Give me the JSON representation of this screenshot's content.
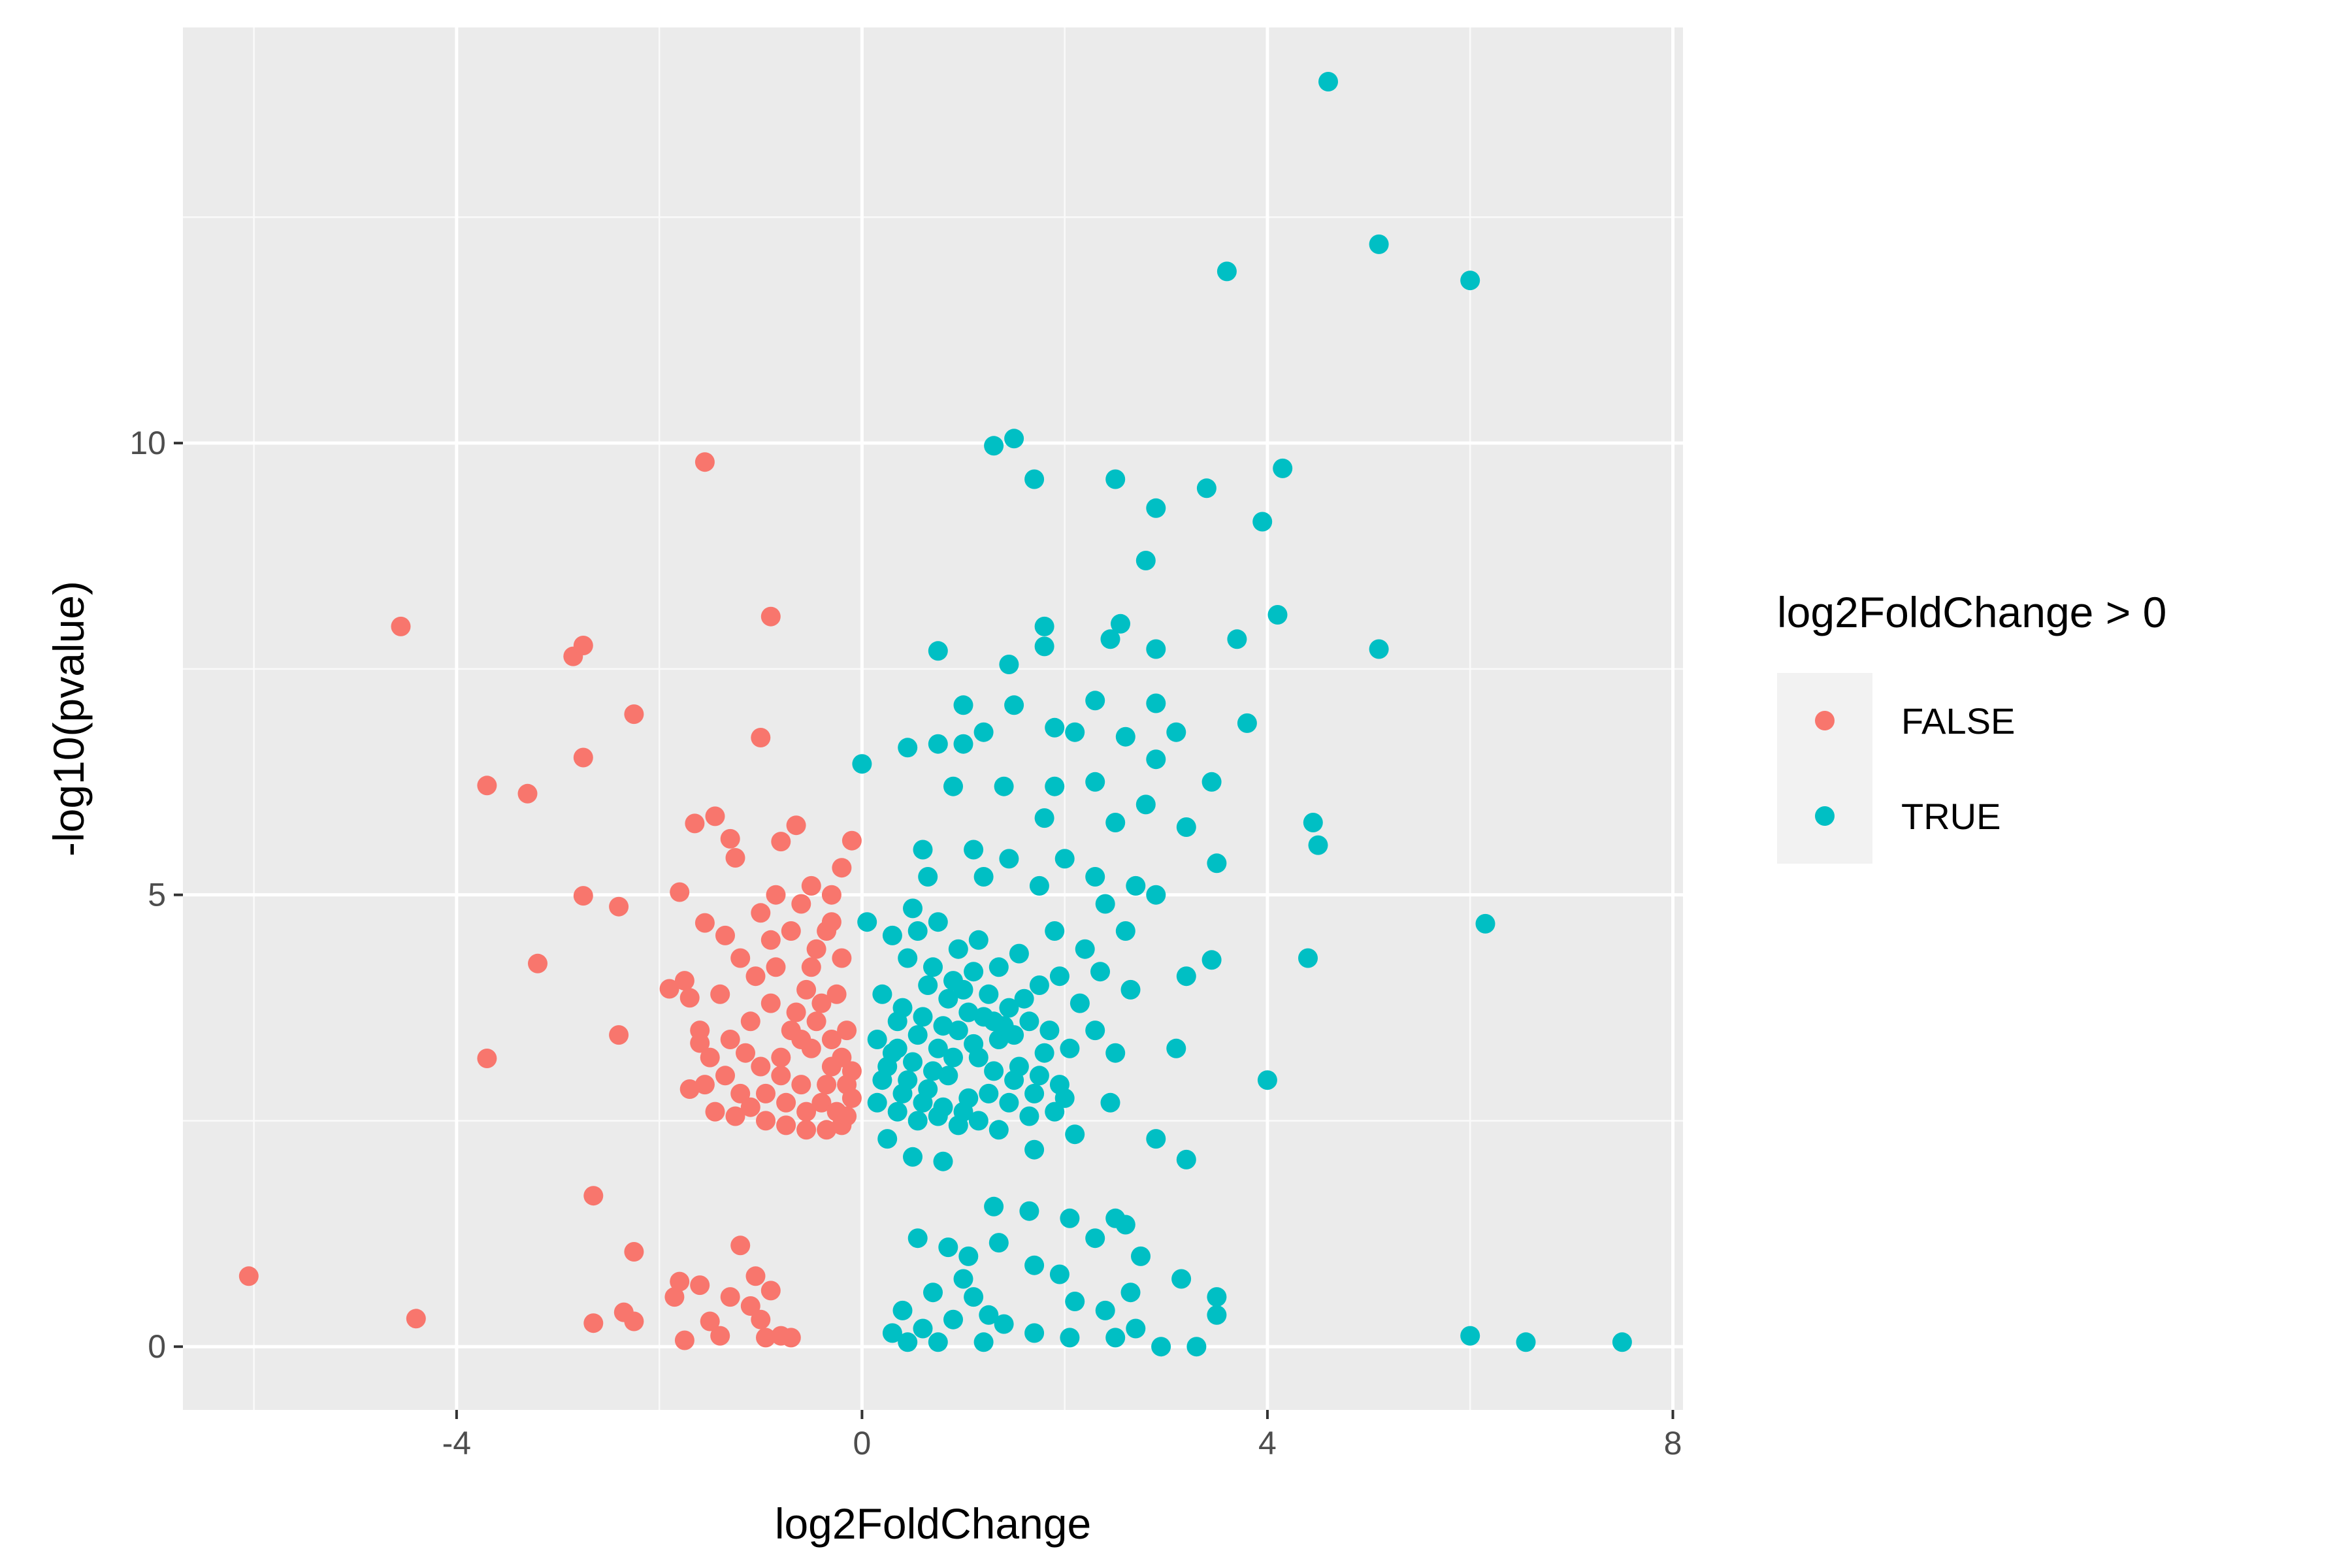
{
  "chart_data": {
    "type": "scatter",
    "xlabel": "log2FoldChange",
    "ylabel": "-log10(pvalue)",
    "xlim": [
      -6.7,
      8.1
    ],
    "ylim": [
      -0.7,
      14.6
    ],
    "x_ticks": [
      -4,
      0,
      4,
      8
    ],
    "y_ticks": [
      0,
      5,
      10
    ],
    "x_tick_labels": [
      "-4",
      "0",
      "4",
      "8"
    ],
    "y_tick_labels": [
      "0",
      "5",
      "10"
    ],
    "grid": true,
    "legend": {
      "title": "log2FoldChange > 0",
      "position": "right",
      "entries": [
        {
          "label": "FALSE",
          "color": "#F8766D"
        },
        {
          "label": "TRUE",
          "color": "#00BFC4"
        }
      ]
    },
    "series": [
      {
        "name": "FALSE",
        "color": "#F8766D",
        "points": [
          [
            -6.05,
            0.78
          ],
          [
            -4.55,
            7.97
          ],
          [
            -4.4,
            0.31
          ],
          [
            -3.7,
            6.21
          ],
          [
            -3.7,
            3.19
          ],
          [
            -3.3,
            6.12
          ],
          [
            -3.2,
            4.24
          ],
          [
            -2.85,
            7.64
          ],
          [
            -2.75,
            7.76
          ],
          [
            -2.75,
            6.52
          ],
          [
            -2.75,
            4.99
          ],
          [
            -2.65,
            1.67
          ],
          [
            -2.65,
            0.26
          ],
          [
            -2.4,
            4.87
          ],
          [
            -2.4,
            3.45
          ],
          [
            -2.35,
            0.38
          ],
          [
            -2.25,
            7.0
          ],
          [
            -2.25,
            1.05
          ],
          [
            -2.25,
            0.28
          ],
          [
            -1.9,
            3.96
          ],
          [
            -1.85,
            0.55
          ],
          [
            -1.8,
            5.03
          ],
          [
            -1.75,
            4.05
          ],
          [
            -1.75,
            0.07
          ],
          [
            -1.7,
            3.86
          ],
          [
            -1.65,
            5.79
          ],
          [
            -1.6,
            3.36
          ],
          [
            -1.55,
            9.79
          ],
          [
            -1.55,
            4.69
          ],
          [
            -1.5,
            0.28
          ],
          [
            -1.45,
            5.87
          ],
          [
            -1.4,
            0.12
          ],
          [
            -1.3,
            5.62
          ],
          [
            -1.25,
            5.41
          ],
          [
            -1.2,
            1.12
          ],
          [
            -1.05,
            0.78
          ],
          [
            -1.0,
            6.74
          ],
          [
            -0.95,
            0.1
          ],
          [
            -0.9,
            8.08
          ],
          [
            -0.8,
            5.59
          ],
          [
            -0.7,
            0.1
          ],
          [
            -0.65,
            5.77
          ],
          [
            -1.8,
            0.72
          ],
          [
            -1.6,
            0.68
          ],
          [
            -1.3,
            0.55
          ],
          [
            -1.1,
            0.45
          ],
          [
            -0.9,
            0.62
          ],
          [
            -0.8,
            0.12
          ],
          [
            -1.0,
            0.3
          ],
          [
            -1.4,
            3.9
          ],
          [
            -1.2,
            4.3
          ],
          [
            -0.6,
            4.9
          ],
          [
            -0.5,
            5.1
          ],
          [
            -0.35,
            4.6
          ],
          [
            -0.2,
            4.3
          ],
          [
            -0.3,
            5.0
          ],
          [
            -0.45,
            4.4
          ],
          [
            -0.55,
            3.95
          ],
          [
            -1.6,
            3.5
          ],
          [
            -1.5,
            3.2
          ],
          [
            -1.35,
            3.0
          ],
          [
            -1.55,
            2.9
          ],
          [
            -1.7,
            2.85
          ],
          [
            -1.45,
            2.6
          ],
          [
            -1.25,
            2.55
          ],
          [
            -0.95,
            2.5
          ],
          [
            -0.75,
            2.45
          ],
          [
            -0.55,
            2.4
          ],
          [
            -0.35,
            2.4
          ],
          [
            -0.2,
            2.45
          ],
          [
            -1.1,
            3.6
          ],
          [
            -0.9,
            3.8
          ],
          [
            -0.7,
            3.5
          ],
          [
            -0.5,
            3.3
          ],
          [
            -0.3,
            3.1
          ],
          [
            -0.15,
            2.9
          ],
          [
            -1.2,
            2.8
          ],
          [
            -1.0,
            3.1
          ],
          [
            -0.8,
            3.2
          ],
          [
            -0.6,
            2.9
          ],
          [
            -0.4,
            2.7
          ],
          [
            -0.25,
            2.6
          ],
          [
            -1.05,
            4.1
          ],
          [
            -0.85,
            4.2
          ],
          [
            -0.65,
            3.7
          ],
          [
            -0.45,
            3.6
          ],
          [
            -0.3,
            3.4
          ],
          [
            -0.15,
            3.5
          ],
          [
            -1.3,
            3.4
          ],
          [
            -1.15,
            3.25
          ],
          [
            -0.95,
            2.8
          ],
          [
            -0.75,
            2.7
          ],
          [
            -0.55,
            2.6
          ],
          [
            -0.35,
            2.9
          ],
          [
            -0.7,
            4.6
          ],
          [
            -0.9,
            4.5
          ],
          [
            -0.5,
            4.2
          ],
          [
            -0.25,
            3.9
          ],
          [
            -0.4,
            3.8
          ],
          [
            -0.6,
            3.4
          ],
          [
            -0.8,
            3.0
          ],
          [
            -1.1,
            2.65
          ],
          [
            -0.2,
            3.2
          ],
          [
            -0.1,
            2.75
          ],
          [
            -0.1,
            3.05
          ],
          [
            -0.15,
            2.55
          ],
          [
            -1.35,
            4.55
          ],
          [
            -1.0,
            4.8
          ],
          [
            -0.85,
            5.0
          ],
          [
            -0.3,
            4.7
          ],
          [
            -0.2,
            5.3
          ],
          [
            -0.1,
            5.6
          ]
        ]
      },
      {
        "name": "TRUE",
        "color": "#00BFC4",
        "points": [
          [
            4.6,
            14.0
          ],
          [
            5.1,
            12.2
          ],
          [
            6.0,
            11.8
          ],
          [
            3.6,
            11.9
          ],
          [
            1.3,
            9.97
          ],
          [
            1.5,
            10.05
          ],
          [
            4.15,
            9.72
          ],
          [
            1.7,
            9.6
          ],
          [
            2.5,
            9.6
          ],
          [
            3.4,
            9.5
          ],
          [
            2.9,
            9.28
          ],
          [
            3.95,
            9.13
          ],
          [
            2.8,
            8.7
          ],
          [
            4.1,
            8.1
          ],
          [
            1.8,
            7.97
          ],
          [
            2.55,
            8.0
          ],
          [
            3.7,
            7.83
          ],
          [
            2.45,
            7.83
          ],
          [
            1.8,
            7.75
          ],
          [
            2.9,
            7.72
          ],
          [
            5.1,
            7.72
          ],
          [
            0.75,
            7.7
          ],
          [
            1.45,
            7.55
          ],
          [
            1.0,
            7.1
          ],
          [
            1.5,
            7.1
          ],
          [
            2.3,
            7.15
          ],
          [
            2.9,
            7.12
          ],
          [
            1.9,
            6.85
          ],
          [
            3.8,
            6.9
          ],
          [
            1.2,
            6.8
          ],
          [
            2.6,
            6.75
          ],
          [
            3.1,
            6.8
          ],
          [
            0.45,
            6.63
          ],
          [
            0.75,
            6.67
          ],
          [
            1.0,
            6.67
          ],
          [
            2.1,
            6.8
          ],
          [
            2.9,
            6.5
          ],
          [
            0.9,
            6.2
          ],
          [
            1.4,
            6.2
          ],
          [
            1.9,
            6.2
          ],
          [
            2.3,
            6.25
          ],
          [
            3.45,
            6.25
          ],
          [
            0.0,
            6.45
          ],
          [
            2.8,
            6.0
          ],
          [
            1.8,
            5.85
          ],
          [
            2.5,
            5.8
          ],
          [
            3.2,
            5.75
          ],
          [
            4.45,
            5.8
          ],
          [
            4.5,
            5.55
          ],
          [
            0.6,
            5.5
          ],
          [
            1.1,
            5.5
          ],
          [
            1.45,
            5.4
          ],
          [
            2.0,
            5.4
          ],
          [
            3.5,
            5.35
          ],
          [
            0.65,
            5.2
          ],
          [
            1.2,
            5.2
          ],
          [
            1.75,
            5.1
          ],
          [
            2.3,
            5.2
          ],
          [
            2.7,
            5.1
          ],
          [
            2.9,
            5.0
          ],
          [
            6.15,
            4.68
          ],
          [
            4.4,
            4.3
          ],
          [
            3.45,
            4.28
          ],
          [
            3.2,
            4.1
          ],
          [
            2.35,
            4.15
          ],
          [
            2.65,
            3.95
          ],
          [
            2.3,
            3.5
          ],
          [
            3.1,
            3.3
          ],
          [
            4.0,
            2.95
          ],
          [
            2.5,
            3.25
          ],
          [
            2.45,
            2.7
          ],
          [
            1.9,
            2.6
          ],
          [
            2.1,
            2.35
          ],
          [
            2.9,
            2.3
          ],
          [
            3.2,
            2.07
          ],
          [
            1.7,
            2.18
          ],
          [
            0.8,
            2.05
          ],
          [
            0.5,
            2.1
          ],
          [
            0.25,
            2.3
          ],
          [
            0.05,
            4.7
          ],
          [
            1.3,
            1.55
          ],
          [
            1.65,
            1.5
          ],
          [
            2.05,
            1.42
          ],
          [
            2.5,
            1.42
          ],
          [
            2.6,
            1.35
          ],
          [
            0.55,
            1.2
          ],
          [
            0.85,
            1.1
          ],
          [
            1.05,
            1.0
          ],
          [
            1.35,
            1.15
          ],
          [
            1.7,
            0.9
          ],
          [
            1.95,
            0.8
          ],
          [
            2.3,
            1.2
          ],
          [
            2.75,
            1.0
          ],
          [
            3.15,
            0.75
          ],
          [
            2.1,
            0.5
          ],
          [
            2.4,
            0.4
          ],
          [
            2.65,
            0.6
          ],
          [
            3.5,
            0.55
          ],
          [
            3.5,
            0.35
          ],
          [
            0.3,
            0.15
          ],
          [
            0.6,
            0.2
          ],
          [
            0.9,
            0.3
          ],
          [
            1.1,
            0.55
          ],
          [
            1.4,
            0.25
          ],
          [
            1.7,
            0.15
          ],
          [
            2.05,
            0.1
          ],
          [
            2.5,
            0.1
          ],
          [
            2.7,
            0.2
          ],
          [
            2.95,
            0.0
          ],
          [
            3.3,
            0.0
          ],
          [
            6.0,
            0.12
          ],
          [
            6.55,
            0.05
          ],
          [
            7.5,
            0.05
          ],
          [
            0.45,
            0.05
          ],
          [
            0.75,
            0.05
          ],
          [
            1.2,
            0.05
          ],
          [
            0.4,
            0.4
          ],
          [
            0.7,
            0.6
          ],
          [
            1.0,
            0.75
          ],
          [
            1.25,
            0.35
          ],
          [
            0.55,
            4.6
          ],
          [
            0.75,
            4.7
          ],
          [
            0.95,
            4.4
          ],
          [
            1.15,
            4.5
          ],
          [
            1.35,
            4.2
          ],
          [
            1.55,
            4.35
          ],
          [
            1.75,
            4.0
          ],
          [
            1.95,
            4.1
          ],
          [
            2.15,
            3.8
          ],
          [
            0.45,
            4.3
          ],
          [
            0.65,
            4.0
          ],
          [
            0.85,
            3.85
          ],
          [
            1.05,
            3.7
          ],
          [
            1.25,
            3.9
          ],
          [
            1.45,
            3.75
          ],
          [
            1.65,
            3.6
          ],
          [
            1.85,
            3.5
          ],
          [
            2.05,
            3.3
          ],
          [
            0.35,
            3.6
          ],
          [
            0.55,
            3.45
          ],
          [
            0.75,
            3.3
          ],
          [
            0.95,
            3.5
          ],
          [
            1.15,
            3.2
          ],
          [
            1.35,
            3.4
          ],
          [
            1.55,
            3.1
          ],
          [
            1.75,
            3.0
          ],
          [
            1.95,
            2.9
          ],
          [
            0.25,
            3.1
          ],
          [
            0.45,
            2.95
          ],
          [
            0.65,
            2.85
          ],
          [
            0.85,
            3.0
          ],
          [
            1.05,
            2.75
          ],
          [
            1.25,
            2.8
          ],
          [
            1.45,
            2.7
          ],
          [
            1.65,
            2.55
          ],
          [
            0.15,
            2.7
          ],
          [
            0.35,
            2.6
          ],
          [
            0.55,
            2.5
          ],
          [
            0.75,
            2.55
          ],
          [
            0.95,
            2.45
          ],
          [
            1.15,
            2.5
          ],
          [
            1.35,
            2.4
          ],
          [
            0.2,
            3.9
          ],
          [
            0.4,
            3.75
          ],
          [
            0.6,
            3.65
          ],
          [
            0.8,
            3.55
          ],
          [
            1.0,
            3.95
          ],
          [
            1.2,
            3.65
          ],
          [
            1.4,
            3.55
          ],
          [
            1.6,
            3.85
          ],
          [
            1.8,
            3.25
          ],
          [
            2.0,
            2.75
          ],
          [
            0.3,
            4.55
          ],
          [
            0.5,
            4.85
          ],
          [
            0.7,
            4.2
          ],
          [
            0.9,
            4.05
          ],
          [
            1.1,
            4.15
          ],
          [
            1.3,
            3.05
          ],
          [
            1.5,
            2.95
          ],
          [
            1.7,
            2.8
          ],
          [
            0.3,
            3.25
          ],
          [
            0.5,
            3.15
          ],
          [
            0.7,
            3.05
          ],
          [
            0.9,
            3.2
          ],
          [
            1.1,
            3.35
          ],
          [
            1.3,
            3.6
          ],
          [
            1.5,
            3.45
          ],
          [
            0.2,
            2.95
          ],
          [
            0.4,
            2.8
          ],
          [
            0.6,
            2.7
          ],
          [
            0.8,
            2.65
          ],
          [
            1.0,
            2.6
          ],
          [
            0.15,
            3.4
          ],
          [
            0.35,
            3.3
          ],
          [
            2.2,
            4.4
          ],
          [
            2.4,
            4.9
          ],
          [
            2.6,
            4.6
          ],
          [
            1.9,
            4.6
          ]
        ]
      }
    ]
  }
}
